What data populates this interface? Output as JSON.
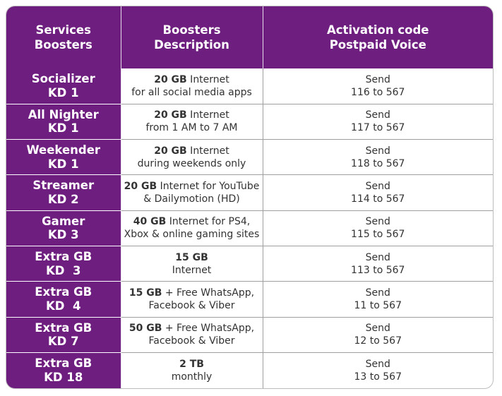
{
  "headers": {
    "col1": [
      "Services",
      "Boosters"
    ],
    "col2": [
      "Boosters",
      "Description"
    ],
    "col3": [
      "Activation code",
      "Postpaid Voice"
    ]
  },
  "rows": [
    {
      "name": "Socializer",
      "price": "KD 1",
      "desc1_bold": "20 GB",
      "desc1_rest": " Internet",
      "desc2": "for all social media apps",
      "send": "Send",
      "code": "116 to 567"
    },
    {
      "name": "All Nighter",
      "price": "KD 1",
      "desc1_bold": "20 GB",
      "desc1_rest": " Internet",
      "desc2": "from 1 AM to 7 AM",
      "send": "Send",
      "code": "117 to 567"
    },
    {
      "name": "Weekender",
      "price": "KD 1",
      "desc1_bold": "20 GB",
      "desc1_rest": " Internet",
      "desc2": "during weekends only",
      "send": "Send",
      "code": "118 to 567"
    },
    {
      "name": "Streamer",
      "price": "KD 2",
      "desc1_bold": "20 GB",
      "desc1_rest": " Internet for YouTube",
      "desc2": "& Dailymotion (HD)",
      "send": "Send",
      "code": "114 to 567"
    },
    {
      "name": "Gamer",
      "price": "KD 3",
      "desc1_bold": "40 GB",
      "desc1_rest": " Internet for PS4,",
      "desc2": "Xbox & online gaming sites",
      "send": "Send",
      "code": "115 to 567"
    },
    {
      "name": "Extra GB",
      "price": "KD  3",
      "desc1_bold": "15 GB",
      "desc1_rest": "",
      "desc2": "Internet",
      "send": "Send",
      "code": "113 to 567"
    },
    {
      "name": "Extra GB",
      "price": "KD  4",
      "desc1_bold": "15 GB",
      "desc1_rest": " + Free WhatsApp,",
      "desc2": "Facebook & Viber",
      "send": "Send",
      "code": "11 to 567"
    },
    {
      "name": "Extra GB",
      "price": "KD 7",
      "desc1_bold": "50 GB",
      "desc1_rest": " + Free WhatsApp,",
      "desc2": "Facebook & Viber",
      "send": "Send",
      "code": "12 to 567"
    },
    {
      "name": "Extra GB",
      "price": "KD 18",
      "desc1_bold": "2 TB",
      "desc1_rest": "",
      "desc2": "monthly",
      "send": "Send",
      "code": "13 to 567"
    }
  ],
  "colors": {
    "purple": "#6e1e7e",
    "text": "#333333",
    "grid": "#9e9e9e"
  }
}
